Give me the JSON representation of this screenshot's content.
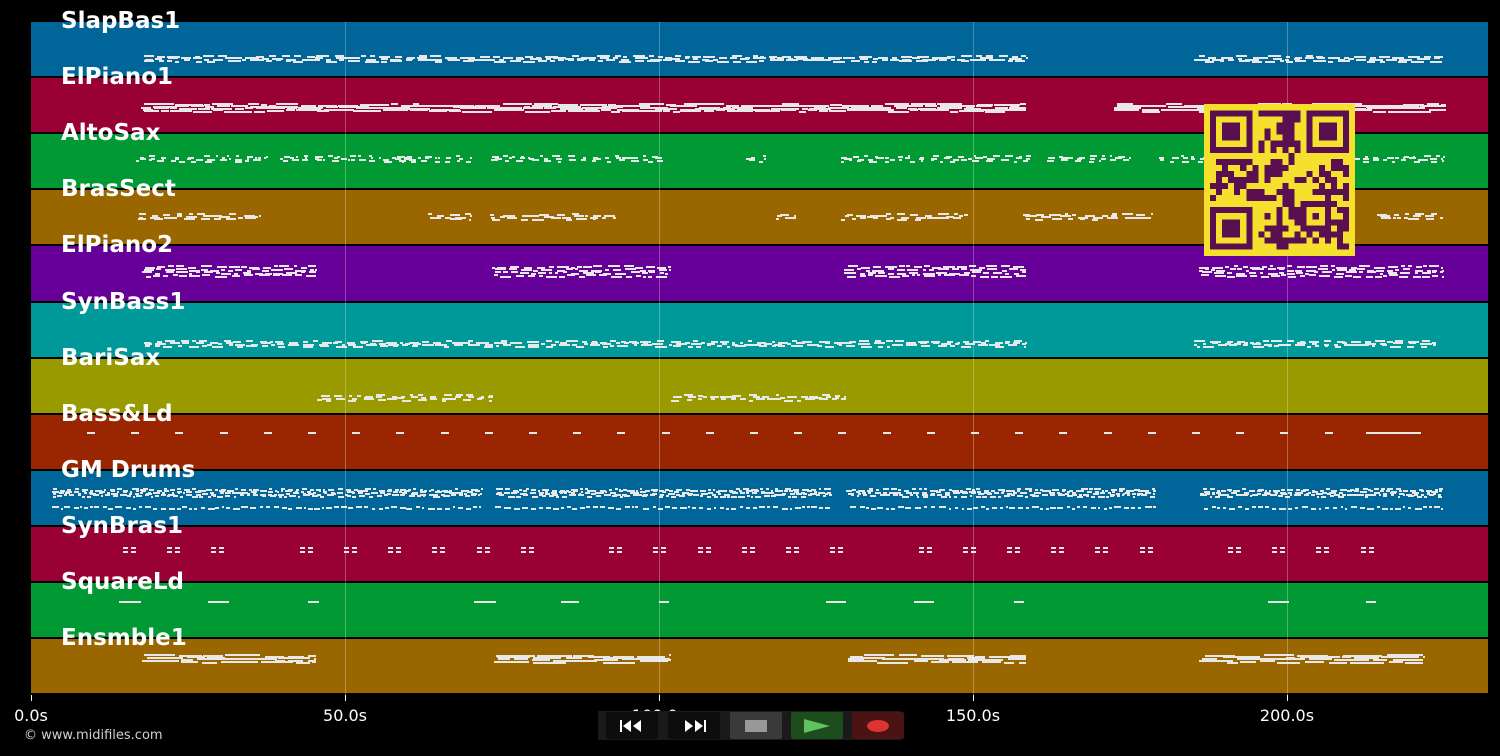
{
  "tracks": [
    {
      "name": "SlapBas1",
      "color": "#006699"
    },
    {
      "name": "ElPiano1",
      "color": "#990033"
    },
    {
      "name": "AltoSax",
      "color": "#009933"
    },
    {
      "name": "BrasSect",
      "color": "#996600"
    },
    {
      "name": "ElPiano2",
      "color": "#660099"
    },
    {
      "name": "SynBass1",
      "color": "#009999"
    },
    {
      "name": "BariSax",
      "color": "#999900"
    },
    {
      "name": "Bass&Ld",
      "color": "#992600"
    },
    {
      "name": "GM Drums",
      "color": "#006699"
    },
    {
      "name": "SynBras1",
      "color": "#990033"
    },
    {
      "name": "SquareLd",
      "color": "#009933"
    },
    {
      "name": "Ensmble1",
      "color": "#996600"
    }
  ],
  "timeline": {
    "ticks": [
      {
        "label": "0.0s",
        "time": 0
      },
      {
        "label": "50.0s",
        "time": 50
      },
      {
        "label": "100.0s",
        "time": 100
      },
      {
        "label": "150.0s",
        "time": 150
      },
      {
        "label": "200.0s",
        "time": 200
      }
    ],
    "total_seconds": 232
  },
  "transport": {
    "buttons": [
      {
        "name": "rewind-button",
        "icon": "rewind-icon"
      },
      {
        "name": "fast-forward-button",
        "icon": "fast-forward-icon"
      },
      {
        "name": "stop-button",
        "icon": "stop-icon"
      },
      {
        "name": "play-button",
        "icon": "play-icon"
      },
      {
        "name": "record-button",
        "icon": "record-icon"
      }
    ]
  },
  "copyright": "© www.midifiles.com",
  "qr_code": {
    "icon": "qr-code-icon",
    "color": "#f5e12d"
  }
}
